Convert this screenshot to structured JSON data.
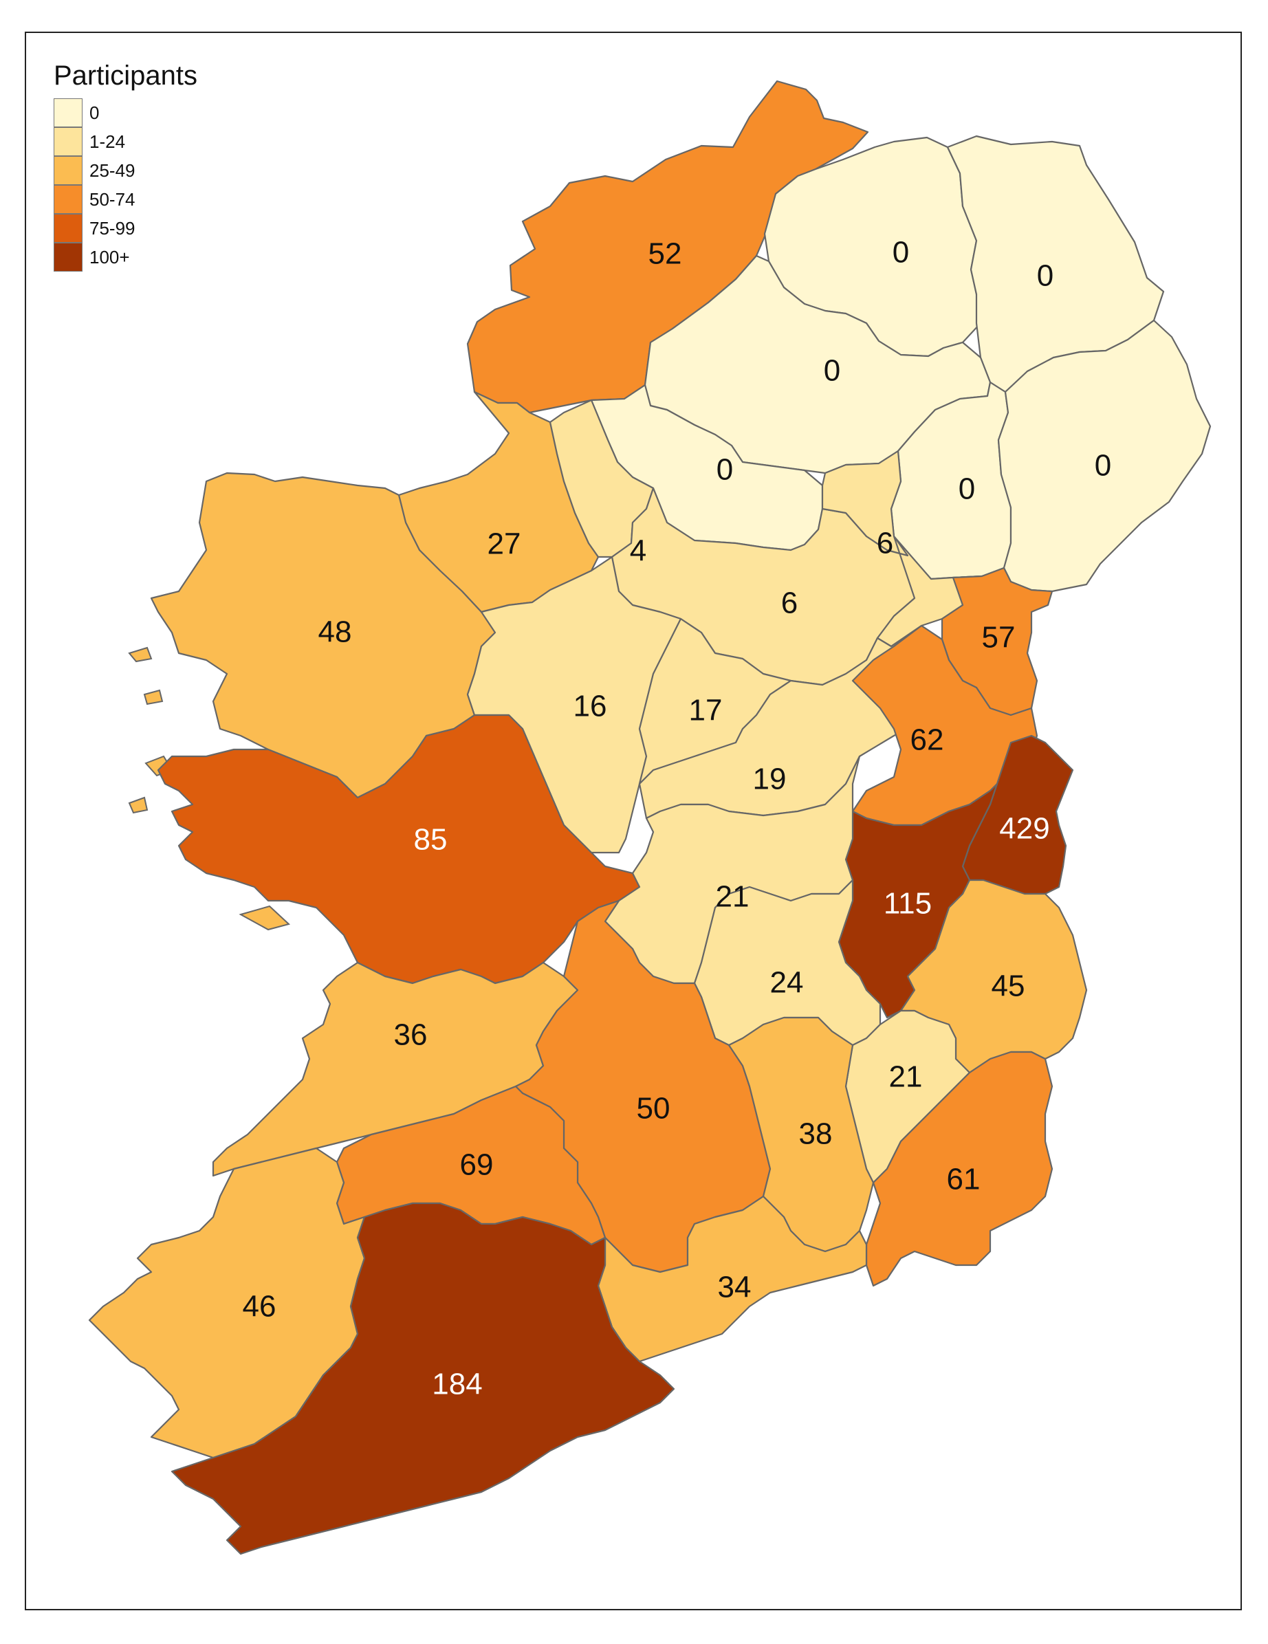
{
  "legend": {
    "title": "Participants",
    "classes": [
      {
        "label": "0",
        "color": "#FFF7D0"
      },
      {
        "label": "1-24",
        "color": "#FDE49C"
      },
      {
        "label": "25-49",
        "color": "#FBBC51"
      },
      {
        "label": "50-74",
        "color": "#F68D2A"
      },
      {
        "label": "75-99",
        "color": "#DD5D0D"
      },
      {
        "label": "100+",
        "color": "#A13504"
      }
    ]
  },
  "regions": [
    {
      "id": "north-northwest",
      "value": "52",
      "cls": 3,
      "light": false
    },
    {
      "id": "north-central",
      "value": "0",
      "cls": 0,
      "light": false
    },
    {
      "id": "northeast",
      "value": "0",
      "cls": 0,
      "light": false
    },
    {
      "id": "north-interior",
      "value": "0",
      "cls": 0,
      "light": false
    },
    {
      "id": "northwest-inland",
      "value": "0",
      "cls": 0,
      "light": false
    },
    {
      "id": "north-south",
      "value": "0",
      "cls": 0,
      "light": false
    },
    {
      "id": "east-north",
      "value": "0",
      "cls": 0,
      "light": false
    },
    {
      "id": "border-west",
      "value": "27",
      "cls": 2,
      "light": false
    },
    {
      "id": "border-small",
      "value": "4",
      "cls": 1,
      "light": false
    },
    {
      "id": "border-central",
      "value": "6",
      "cls": 1,
      "light": false
    },
    {
      "id": "border-east",
      "value": "6",
      "cls": 1,
      "light": false
    },
    {
      "id": "coast-northeast",
      "value": "57",
      "cls": 3,
      "light": false
    },
    {
      "id": "west-coast",
      "value": "48",
      "cls": 2,
      "light": false
    },
    {
      "id": "midwest-north",
      "value": "16",
      "cls": 1,
      "light": false
    },
    {
      "id": "midlands-north",
      "value": "17",
      "cls": 1,
      "light": false
    },
    {
      "id": "midlands-east",
      "value": "19",
      "cls": 1,
      "light": false
    },
    {
      "id": "east-inland",
      "value": "62",
      "cls": 3,
      "light": false
    },
    {
      "id": "west-large",
      "value": "85",
      "cls": 4,
      "light": true
    },
    {
      "id": "capital",
      "value": "429",
      "cls": 5,
      "light": true
    },
    {
      "id": "east-central",
      "value": "115",
      "cls": 5,
      "light": true
    },
    {
      "id": "midlands-south",
      "value": "21",
      "cls": 1,
      "light": false
    },
    {
      "id": "southeast-inland",
      "value": "24",
      "cls": 1,
      "light": false
    },
    {
      "id": "east-coast",
      "value": "45",
      "cls": 2,
      "light": false
    },
    {
      "id": "midwest",
      "value": "36",
      "cls": 2,
      "light": false
    },
    {
      "id": "south-inland",
      "value": "50",
      "cls": 3,
      "light": false
    },
    {
      "id": "southeast-small",
      "value": "21",
      "cls": 1,
      "light": false
    },
    {
      "id": "southeast-central",
      "value": "38",
      "cls": 2,
      "light": false
    },
    {
      "id": "southwest-inland",
      "value": "69",
      "cls": 3,
      "light": false
    },
    {
      "id": "southeast-coast",
      "value": "61",
      "cls": 3,
      "light": false
    },
    {
      "id": "south-coast",
      "value": "34",
      "cls": 2,
      "light": false
    },
    {
      "id": "southwest",
      "value": "46",
      "cls": 2,
      "light": false
    },
    {
      "id": "south",
      "value": "184",
      "cls": 5,
      "light": true
    }
  ]
}
